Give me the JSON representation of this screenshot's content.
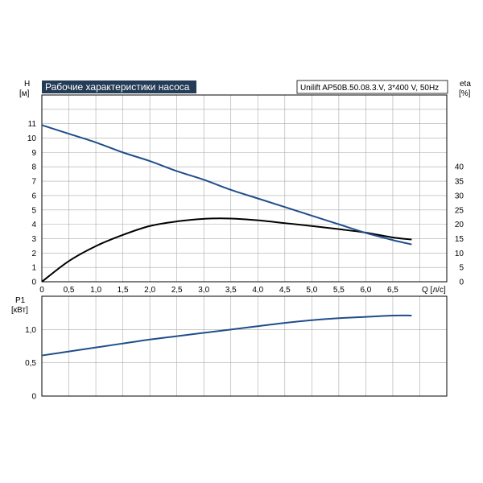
{
  "chart_data": [
    {
      "type": "line",
      "title": "Рабочие характеристики насоса",
      "model_label": "Unilift AP50B.50.08.3.V, 3*400 V, 50Hz",
      "xlabel": "Q [л/с]",
      "ylabel": "H",
      "ylabel_unit": "[м]",
      "y2label": "eta",
      "y2label_unit": "[%]",
      "xlim": [
        0,
        7.5
      ],
      "ylim": [
        0,
        13
      ],
      "y2lim": [
        0,
        65
      ],
      "x_ticks": [
        "0",
        "0,5",
        "1,0",
        "1,5",
        "2,0",
        "2,5",
        "3,0",
        "3,5",
        "4,0",
        "4,5",
        "5,0",
        "5,5",
        "6,0",
        "6,5"
      ],
      "y_ticks": [
        "0",
        "1",
        "2",
        "3",
        "4",
        "5",
        "6",
        "7",
        "8",
        "9",
        "10",
        "11"
      ],
      "y2_ticks": [
        "0",
        "5",
        "10",
        "15",
        "20",
        "25",
        "30",
        "35",
        "40"
      ],
      "grid": true,
      "colors": {
        "head": "#1f4e8c",
        "efficiency": "#000000",
        "title_bg": "#243c56",
        "grid": "#aaaaaa"
      },
      "series": [
        {
          "axis": "left",
          "x": [
            0,
            0.5,
            1.0,
            1.5,
            2.0,
            2.5,
            3.0,
            3.5,
            4.0,
            4.5,
            5.0,
            5.5,
            6.0,
            6.5,
            6.85
          ],
          "y": [
            10.9,
            10.3,
            9.7,
            9.0,
            8.4,
            7.7,
            7.1,
            6.4,
            5.8,
            5.2,
            4.6,
            4.0,
            3.4,
            2.9,
            2.6
          ]
        },
        {
          "axis": "right",
          "x": [
            0,
            0.5,
            1.0,
            1.5,
            2.0,
            2.5,
            3.0,
            3.5,
            4.0,
            4.5,
            5.0,
            5.5,
            6.0,
            6.5,
            6.85
          ],
          "y": [
            0,
            7.2,
            12.4,
            16.3,
            19.4,
            21.0,
            21.9,
            22.0,
            21.4,
            20.4,
            19.4,
            18.3,
            17.1,
            15.4,
            14.7
          ]
        }
      ]
    },
    {
      "type": "line",
      "ylabel": "P1",
      "ylabel_unit": "[кВт]",
      "xlim": [
        0,
        7.5
      ],
      "ylim": [
        0,
        1.5
      ],
      "y_ticks": [
        "0",
        "0,5",
        "1,0"
      ],
      "grid": true,
      "colors": {
        "power": "#1f4e8c"
      },
      "series": [
        {
          "x": [
            0,
            0.5,
            1.0,
            1.5,
            2.0,
            2.5,
            3.0,
            3.5,
            4.0,
            4.5,
            5.0,
            5.5,
            6.0,
            6.5,
            6.85
          ],
          "y": [
            0.61,
            0.67,
            0.73,
            0.79,
            0.85,
            0.9,
            0.95,
            1.0,
            1.05,
            1.1,
            1.14,
            1.17,
            1.19,
            1.21,
            1.21
          ]
        }
      ]
    }
  ]
}
